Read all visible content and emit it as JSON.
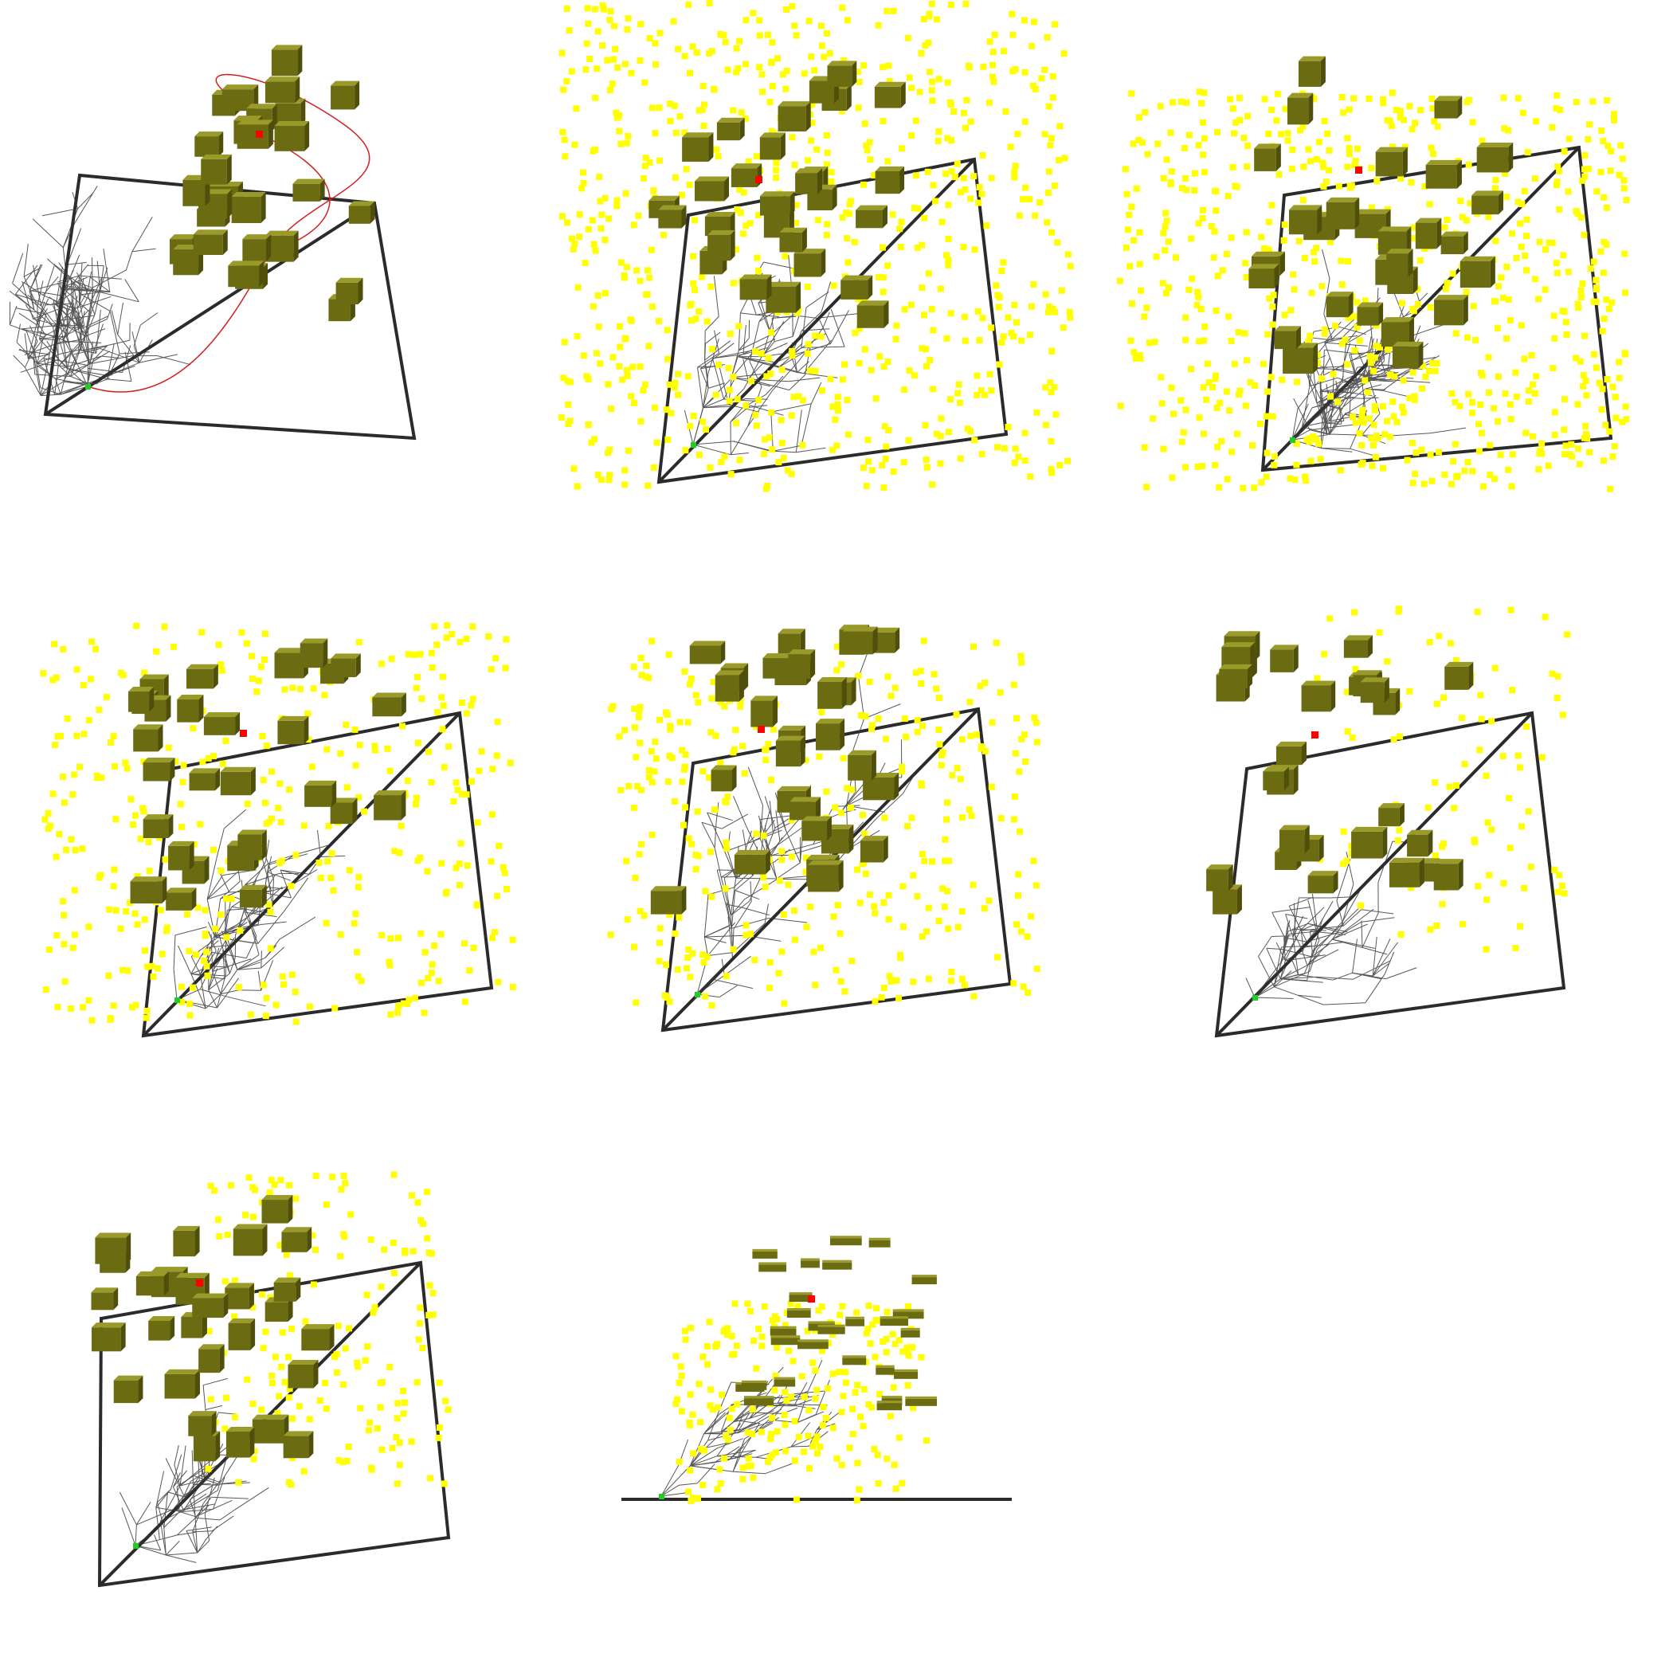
{
  "colors": {
    "background": "#ffffff",
    "frame": "#2b2b2b",
    "tree_edge": "#3a3a3a",
    "solution_path": "#d42020",
    "sample_point": "#ffff00",
    "obstacle": "#6b6b12",
    "goal_marker": "#ff0000",
    "start_marker": "#22cc22"
  },
  "panels": [
    {
      "id": "view-1",
      "view": "perspective",
      "show_samples": false,
      "show_path": true,
      "tree_density": 1.0,
      "sample_density": 0
    },
    {
      "id": "view-2",
      "view": "perspective",
      "show_samples": true,
      "show_path": false,
      "tree_density": 0.45,
      "sample_density": 1.0
    },
    {
      "id": "view-3",
      "view": "perspective",
      "show_samples": true,
      "show_path": false,
      "tree_density": 0.7,
      "sample_density": 1.0
    },
    {
      "id": "view-4",
      "view": "perspective",
      "show_samples": true,
      "show_path": false,
      "tree_density": 0.45,
      "sample_density": 0.55
    },
    {
      "id": "view-5",
      "view": "perspective",
      "show_samples": true,
      "show_path": false,
      "tree_density": 0.45,
      "sample_density": 0.5
    },
    {
      "id": "view-6",
      "view": "perspective",
      "show_samples": true,
      "show_path": false,
      "tree_density": 0.35,
      "sample_density": 0.15
    },
    {
      "id": "view-7",
      "view": "perspective",
      "show_samples": true,
      "show_path": false,
      "tree_density": 0.3,
      "sample_density": 0.25
    },
    {
      "id": "view-8",
      "view": "side",
      "show_samples": true,
      "show_path": false,
      "tree_density": 0.3,
      "sample_density": 0.35
    }
  ]
}
